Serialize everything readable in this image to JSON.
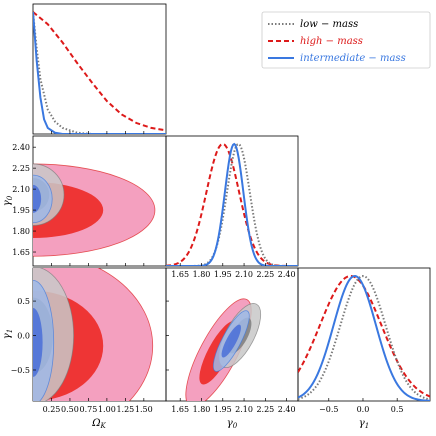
{
  "chart_data": {
    "type": "corner",
    "series": [
      {
        "name": "low − mass",
        "color": "#7a7a7a",
        "style": "dotted",
        "fill_outer": "#c8c8c8",
        "fill_inner": "#7e7e7e"
      },
      {
        "name": "high − mass",
        "color": "#dd1a1a",
        "style": "dashed",
        "fill_outer": "#f4a0bf",
        "fill_inner": "#ee3535"
      },
      {
        "name": "intermediate − mass",
        "color": "#3a78e0",
        "style": "solid",
        "fill_outer": "#9fb8e6",
        "fill_inner": "#4a6ed8"
      }
    ],
    "legend_loc": "upper right",
    "params": [
      {
        "key": "omk",
        "label": "Ω_K",
        "range": [
          0.0,
          1.8
        ],
        "ticks": [
          0.25,
          0.5,
          0.75,
          1.0,
          1.25,
          1.5
        ],
        "tick_labels": [
          "0.25",
          "0.50",
          "0.75",
          "1.00",
          "1.25",
          "1.50"
        ]
      },
      {
        "key": "g0",
        "label": "γ_0",
        "range": [
          1.55,
          2.48
        ],
        "ticks": [
          1.65,
          1.8,
          1.95,
          2.1,
          2.25,
          2.4
        ],
        "tick_labels": [
          "1.65",
          "1.80",
          "1.95",
          "2.10",
          "2.25",
          "2.40"
        ]
      },
      {
        "key": "g1",
        "label": "γ_1",
        "range": [
          -0.95,
          0.98
        ],
        "ticks": [
          -0.5,
          0.0,
          0.5
        ],
        "tick_labels": [
          "−0.5",
          "0.0",
          "0.5"
        ]
      }
    ],
    "marginals": {
      "omk": {
        "low": [
          [
            0.0,
            1.0
          ],
          [
            0.05,
            0.7
          ],
          [
            0.1,
            0.45
          ],
          [
            0.2,
            0.2
          ],
          [
            0.3,
            0.1
          ],
          [
            0.4,
            0.05
          ],
          [
            0.6,
            0.01
          ],
          [
            0.8,
            0.0
          ],
          [
            1.8,
            0.0
          ]
        ],
        "high": [
          [
            0.0,
            1.0
          ],
          [
            0.2,
            0.9
          ],
          [
            0.4,
            0.75
          ],
          [
            0.6,
            0.58
          ],
          [
            0.8,
            0.42
          ],
          [
            1.0,
            0.27
          ],
          [
            1.2,
            0.16
          ],
          [
            1.4,
            0.09
          ],
          [
            1.6,
            0.05
          ],
          [
            1.8,
            0.03
          ]
        ],
        "intermediate": [
          [
            0.0,
            1.0
          ],
          [
            0.05,
            0.6
          ],
          [
            0.1,
            0.3
          ],
          [
            0.15,
            0.12
          ],
          [
            0.2,
            0.05
          ],
          [
            0.3,
            0.01
          ],
          [
            0.4,
            0.0
          ],
          [
            1.8,
            0.0
          ]
        ]
      },
      "g0": {
        "low": {
          "mu": 2.06,
          "sigma": 0.08
        },
        "high": {
          "mu": 1.95,
          "sigma": 0.115
        },
        "intermediate": {
          "mu": 2.03,
          "sigma": 0.065
        }
      },
      "g1": {
        "low": {
          "mu": 0.0,
          "sigma": 0.33
        },
        "high": {
          "mu": -0.18,
          "sigma": 0.45
        },
        "intermediate": {
          "mu": -0.12,
          "sigma": 0.31
        }
      }
    },
    "contours": {
      "omk_g0": {
        "low": {
          "outer": {
            "cx": 0.0,
            "cy": 2.06,
            "rx": 0.42,
            "ry": 0.22,
            "rot": 0
          },
          "inner": {
            "cx": 0.0,
            "cy": 2.06,
            "rx": 0.22,
            "ry": 0.12,
            "rot": 0
          }
        },
        "high": {
          "outer": {
            "cx": 0.0,
            "cy": 1.95,
            "rx": 1.65,
            "ry": 0.33,
            "rot": 0
          },
          "inner": {
            "cx": 0.0,
            "cy": 1.95,
            "rx": 0.95,
            "ry": 0.2,
            "rot": 0
          }
        },
        "intermediate": {
          "outer": {
            "cx": 0.0,
            "cy": 2.03,
            "rx": 0.26,
            "ry": 0.17,
            "rot": 0
          },
          "inner": {
            "cx": 0.0,
            "cy": 2.03,
            "rx": 0.11,
            "ry": 0.1,
            "rot": 0
          }
        }
      },
      "omk_g1": {
        "low": {
          "outer": {
            "cx": 0.0,
            "cy": 0.0,
            "rx": 0.55,
            "ry": 1.0,
            "rot": 0
          },
          "inner": {
            "cx": 0.0,
            "cy": 0.0,
            "rx": 0.27,
            "ry": 0.55,
            "rot": 0
          }
        },
        "high": {
          "outer": {
            "cx": 0.0,
            "cy": -0.15,
            "rx": 1.62,
            "ry": 1.35,
            "rot": 0
          },
          "inner": {
            "cx": 0.0,
            "cy": -0.15,
            "rx": 0.95,
            "ry": 0.8,
            "rot": 0
          }
        },
        "intermediate": {
          "outer": {
            "cx": 0.0,
            "cy": -0.1,
            "rx": 0.28,
            "ry": 0.9,
            "rot": 0
          },
          "inner": {
            "cx": 0.0,
            "cy": -0.1,
            "rx": 0.13,
            "ry": 0.5,
            "rot": 0
          }
        }
      },
      "g0_g1": {
        "low": {
          "outer": {
            "cx": 2.07,
            "cy": 0.0,
            "rx": 0.5,
            "ry": 0.1,
            "rot": -62
          },
          "inner": {
            "cx": 2.07,
            "cy": 0.0,
            "rx": 0.28,
            "ry": 0.055,
            "rot": -62
          }
        },
        "high": {
          "outer": {
            "cx": 1.92,
            "cy": -0.25,
            "rx": 0.85,
            "ry": 0.13,
            "rot": -62
          },
          "inner": {
            "cx": 1.92,
            "cy": -0.25,
            "rx": 0.5,
            "ry": 0.075,
            "rot": -62
          }
        },
        "intermediate": {
          "outer": {
            "cx": 2.01,
            "cy": -0.08,
            "rx": 0.48,
            "ry": 0.065,
            "rot": -62
          },
          "inner": {
            "cx": 2.01,
            "cy": -0.08,
            "rx": 0.26,
            "ry": 0.035,
            "rot": -62
          }
        }
      }
    }
  }
}
